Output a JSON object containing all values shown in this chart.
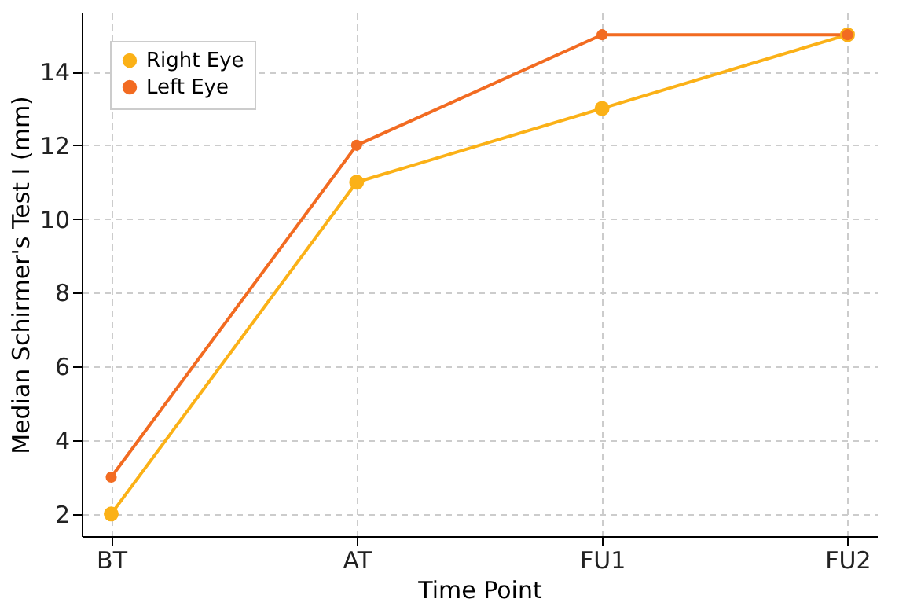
{
  "chart_data": {
    "type": "line",
    "xlabel": "Time Point",
    "ylabel": "Median Schirmer's Test I (mm)",
    "categories": [
      "BT",
      "AT",
      "FU1",
      "FU2"
    ],
    "series": [
      {
        "name": "Right Eye",
        "color": "#fbb117",
        "values": [
          2,
          11,
          13,
          15
        ]
      },
      {
        "name": "Left Eye",
        "color": "#f26b21",
        "values": [
          3,
          12,
          15,
          15
        ]
      }
    ],
    "ylim": [
      1.4,
      15.6
    ],
    "yticks": [
      2,
      4,
      6,
      8,
      10,
      12,
      14
    ],
    "grid": true,
    "legend": "top left",
    "marker": "circle",
    "line_style": "solid"
  }
}
